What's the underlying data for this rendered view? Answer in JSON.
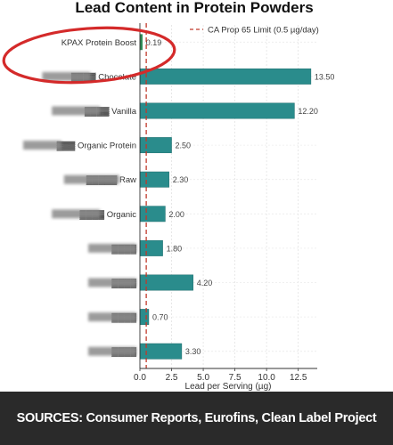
{
  "chart_data": {
    "type": "bar",
    "orientation": "horizontal",
    "title": "Lead Content in Protein Powders",
    "xlabel": "Lead per Serving (µg)",
    "ylabel": "",
    "xlim": [
      0,
      14
    ],
    "xticks": [
      0,
      2.5,
      5,
      7.5,
      10,
      12.5
    ],
    "xtick_labels": [
      "0.0",
      "2.5",
      "5.0",
      "7.5",
      "10.0",
      "12.5"
    ],
    "grid": true,
    "legend": {
      "position": "top-right",
      "entries": [
        "CA Prop 65 Limit (0.5 µg/day)"
      ]
    },
    "reference_line": {
      "name": "CA Prop 65 Limit (0.5 µg/day)",
      "value": 0.5,
      "color": "#c0392b"
    },
    "categories": [
      "KPAX Protein Boost",
      "▓▓▓▓ Chocolate",
      "▓▓▓▓ Vanilla",
      "▓▓▓ Organic Protein",
      "▓▓▓▓▓ Raw",
      "▓▓▓▓ Organic",
      "▓▓▓▓",
      "▓▓▓▓",
      "▓▓▓▓",
      "▓▓▓▓"
    ],
    "values": [
      0.19,
      13.5,
      12.2,
      2.5,
      2.3,
      2.0,
      1.8,
      4.2,
      0.7,
      3.3
    ],
    "value_labels": [
      "0.19",
      "13.50",
      "12.20",
      "2.50",
      "2.30",
      "2.00",
      "1.80",
      "4.20",
      "0.70",
      "3.30"
    ],
    "colors": {
      "highlight": "#2e8b57",
      "bar": "#2a8c8c",
      "bar_edge": "#1f6e6e",
      "circle": "#d42a2a"
    },
    "highlight_index": 0
  },
  "footer": {
    "sources": "SOURCES: Consumer Reports, Eurofins, Clean Label Project"
  }
}
